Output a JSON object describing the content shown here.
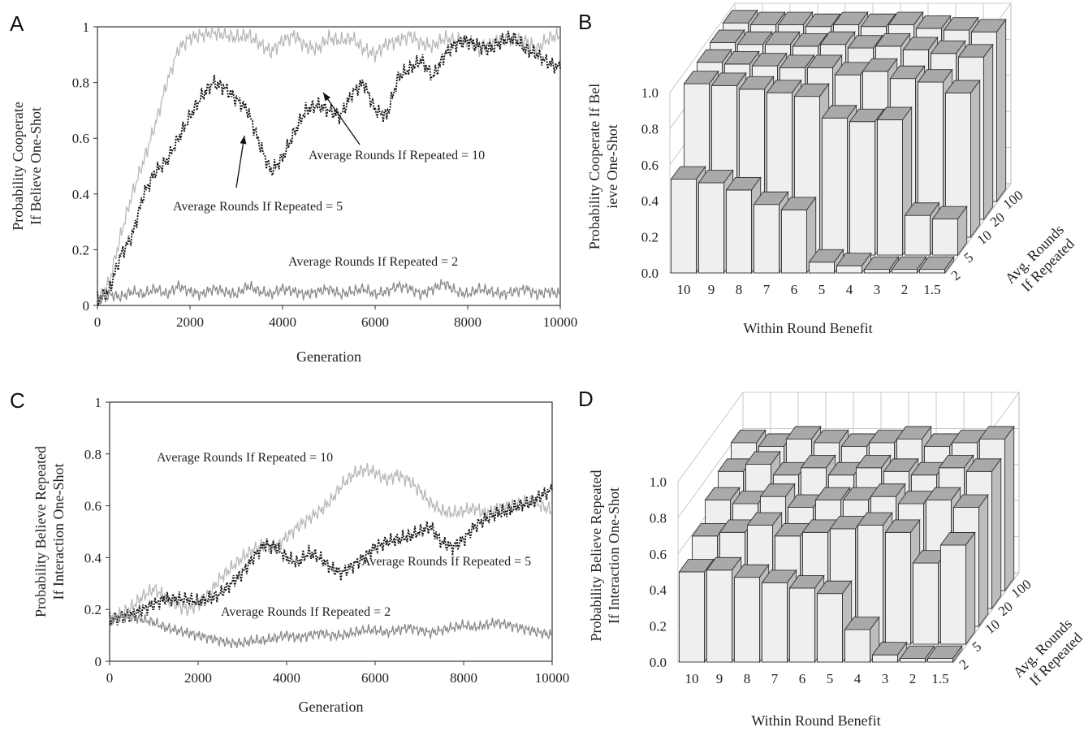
{
  "figure": {
    "panels": [
      {
        "id": "A",
        "label": "A"
      },
      {
        "id": "B",
        "label": "B"
      },
      {
        "id": "C",
        "label": "C"
      },
      {
        "id": "D",
        "label": "D"
      }
    ]
  },
  "chart_data": [
    {
      "id": "A",
      "type": "line",
      "xlabel": "Generation",
      "ylabel": "Probability Cooperate If Believe One-Shot",
      "xlim": [
        0,
        10000
      ],
      "ylim": [
        0,
        1
      ],
      "xticks": [
        "0",
        "2000",
        "4000",
        "6000",
        "8000",
        "10000"
      ],
      "yticks": [
        "0",
        "0.2",
        "0.4",
        "0.6",
        "0.8",
        "1"
      ],
      "x": [
        0,
        250,
        500,
        750,
        1000,
        1250,
        1500,
        1750,
        2000,
        2250,
        2500,
        2750,
        3000,
        3250,
        3500,
        3750,
        4000,
        4250,
        4500,
        4750,
        5000,
        5250,
        5500,
        5750,
        6000,
        6250,
        6500,
        6750,
        7000,
        7250,
        7500,
        7750,
        8000,
        8250,
        8500,
        8750,
        9000,
        9250,
        9500,
        9750,
        10000
      ],
      "series": [
        {
          "color": "#b8b8b8",
          "style": "solid",
          "values": [
            0.02,
            0.08,
            0.25,
            0.4,
            0.52,
            0.65,
            0.8,
            0.92,
            0.96,
            0.97,
            0.98,
            0.97,
            0.96,
            0.97,
            0.94,
            0.91,
            0.95,
            0.97,
            0.93,
            0.92,
            0.96,
            0.95,
            0.96,
            0.92,
            0.9,
            0.94,
            0.95,
            0.97,
            0.94,
            0.93,
            0.96,
            0.95,
            0.95,
            0.92,
            0.94,
            0.96,
            0.96,
            0.95,
            0.92,
            0.96,
            0.97
          ]
        },
        {
          "color": "#111111",
          "style": "dotted",
          "values": [
            0.02,
            0.05,
            0.18,
            0.25,
            0.4,
            0.48,
            0.52,
            0.6,
            0.68,
            0.75,
            0.8,
            0.78,
            0.74,
            0.7,
            0.58,
            0.48,
            0.53,
            0.62,
            0.7,
            0.72,
            0.7,
            0.68,
            0.76,
            0.8,
            0.7,
            0.68,
            0.82,
            0.85,
            0.88,
            0.82,
            0.9,
            0.94,
            0.95,
            0.93,
            0.92,
            0.95,
            0.96,
            0.92,
            0.9,
            0.87,
            0.85
          ]
        },
        {
          "color": "#8a8a8a",
          "style": "solid",
          "values": [
            0.02,
            0.04,
            0.03,
            0.05,
            0.04,
            0.06,
            0.04,
            0.07,
            0.05,
            0.04,
            0.06,
            0.05,
            0.04,
            0.07,
            0.05,
            0.04,
            0.06,
            0.05,
            0.04,
            0.05,
            0.06,
            0.04,
            0.05,
            0.06,
            0.04,
            0.05,
            0.07,
            0.06,
            0.04,
            0.06,
            0.08,
            0.05,
            0.04,
            0.06,
            0.05,
            0.04,
            0.05,
            0.06,
            0.04,
            0.05,
            0.04
          ]
        }
      ],
      "annotations": [
        {
          "text": "Average  Rounds If Repeated = 10"
        },
        {
          "text": "Average Rounds If Repeated = 5"
        },
        {
          "text": "Average Rounds If Repeated = 2"
        }
      ]
    },
    {
      "id": "B",
      "type": "bar3d",
      "xlabel": "Within Round Benefit",
      "ylabel": "Probability Cooperate If Believe One-Shot",
      "zlabel": "Avg. Rounds If Repeated",
      "x_categories": [
        "10",
        "9",
        "8",
        "7",
        "6",
        "5",
        "4",
        "3",
        "2",
        "1.5"
      ],
      "z_categories": [
        "2",
        "5",
        "10",
        "20",
        "100"
      ],
      "yticks": [
        "0.0",
        "0.2",
        "0.4",
        "0.6",
        "0.8",
        "1.0"
      ],
      "ylim": [
        0,
        1
      ],
      "values": [
        [
          0.52,
          0.5,
          0.46,
          0.38,
          0.35,
          0.06,
          0.04,
          0.02,
          0.02,
          0.02
        ],
        [
          0.95,
          0.94,
          0.92,
          0.9,
          0.88,
          0.76,
          0.74,
          0.75,
          0.22,
          0.2
        ],
        [
          0.97,
          0.96,
          0.95,
          0.94,
          0.94,
          0.9,
          0.92,
          0.88,
          0.86,
          0.8
        ],
        [
          0.98,
          0.97,
          0.97,
          0.96,
          0.97,
          0.95,
          0.96,
          0.94,
          0.92,
          0.9
        ],
        [
          0.99,
          0.98,
          0.98,
          0.97,
          0.98,
          0.97,
          0.98,
          0.96,
          0.95,
          0.94
        ]
      ]
    },
    {
      "id": "C",
      "type": "line",
      "xlabel": "Generation",
      "ylabel": "Probability Believe Repeated If Interaction One-Shot",
      "xlim": [
        0,
        10000
      ],
      "ylim": [
        0,
        1
      ],
      "xticks": [
        "0",
        "2000",
        "4000",
        "6000",
        "8000",
        "10000"
      ],
      "yticks": [
        "0",
        "0.2",
        "0.4",
        "0.6",
        "0.8",
        "1"
      ],
      "x": [
        0,
        250,
        500,
        750,
        1000,
        1250,
        1500,
        1750,
        2000,
        2250,
        2500,
        2750,
        3000,
        3250,
        3500,
        3750,
        4000,
        4250,
        4500,
        4750,
        5000,
        5250,
        5500,
        5750,
        6000,
        6250,
        6500,
        6750,
        7000,
        7250,
        7500,
        7750,
        8000,
        8250,
        8500,
        8750,
        9000,
        9250,
        9500,
        9750,
        10000
      ],
      "series": [
        {
          "color": "#b8b8b8",
          "style": "solid",
          "values": [
            0.16,
            0.18,
            0.21,
            0.25,
            0.28,
            0.25,
            0.22,
            0.2,
            0.22,
            0.26,
            0.32,
            0.36,
            0.4,
            0.43,
            0.45,
            0.44,
            0.48,
            0.52,
            0.55,
            0.58,
            0.62,
            0.68,
            0.72,
            0.74,
            0.73,
            0.7,
            0.72,
            0.7,
            0.66,
            0.61,
            0.58,
            0.57,
            0.58,
            0.59,
            0.57,
            0.59,
            0.6,
            0.61,
            0.62,
            0.6,
            0.58
          ]
        },
        {
          "color": "#111111",
          "style": "dotted",
          "values": [
            0.16,
            0.17,
            0.18,
            0.2,
            0.22,
            0.24,
            0.24,
            0.24,
            0.23,
            0.24,
            0.26,
            0.3,
            0.34,
            0.4,
            0.45,
            0.44,
            0.4,
            0.38,
            0.42,
            0.4,
            0.36,
            0.34,
            0.37,
            0.4,
            0.44,
            0.46,
            0.47,
            0.48,
            0.5,
            0.52,
            0.46,
            0.44,
            0.47,
            0.52,
            0.55,
            0.57,
            0.58,
            0.6,
            0.61,
            0.64,
            0.66
          ]
        },
        {
          "color": "#8a8a8a",
          "style": "solid",
          "values": [
            0.16,
            0.17,
            0.17,
            0.16,
            0.15,
            0.13,
            0.12,
            0.11,
            0.1,
            0.09,
            0.08,
            0.07,
            0.07,
            0.08,
            0.08,
            0.09,
            0.1,
            0.09,
            0.1,
            0.11,
            0.1,
            0.1,
            0.11,
            0.12,
            0.12,
            0.11,
            0.12,
            0.13,
            0.12,
            0.11,
            0.12,
            0.13,
            0.14,
            0.13,
            0.14,
            0.15,
            0.14,
            0.13,
            0.12,
            0.11,
            0.1
          ]
        }
      ],
      "annotations": [
        {
          "text": "Average Rounds If Repeated = 10"
        },
        {
          "text": "Average Rounds If Repeated = 5"
        },
        {
          "text": "Average Rounds If Repeated = 2"
        }
      ]
    },
    {
      "id": "D",
      "type": "bar3d",
      "xlabel": "Within Round Benefit",
      "ylabel": "Probability Believe Repeated If Interaction One-Shot",
      "zlabel": "Avg. Rounds If Repeated",
      "x_categories": [
        "10",
        "9",
        "8",
        "7",
        "6",
        "5",
        "4",
        "3",
        "2",
        "1.5"
      ],
      "z_categories": [
        "2",
        "5",
        "10",
        "20",
        "100"
      ],
      "yticks": [
        "0.0",
        "0.2",
        "0.4",
        "0.6",
        "0.8",
        "1.0"
      ],
      "ylim": [
        0,
        1
      ],
      "values": [
        [
          0.5,
          0.51,
          0.47,
          0.44,
          0.41,
          0.38,
          0.18,
          0.04,
          0.02,
          0.02
        ],
        [
          0.6,
          0.62,
          0.66,
          0.6,
          0.62,
          0.64,
          0.66,
          0.62,
          0.45,
          0.55
        ],
        [
          0.7,
          0.68,
          0.72,
          0.66,
          0.7,
          0.7,
          0.72,
          0.68,
          0.7,
          0.66
        ],
        [
          0.76,
          0.8,
          0.74,
          0.78,
          0.74,
          0.78,
          0.76,
          0.74,
          0.78,
          0.76
        ],
        [
          0.82,
          0.8,
          0.84,
          0.82,
          0.8,
          0.82,
          0.84,
          0.8,
          0.82,
          0.84
        ]
      ]
    }
  ]
}
